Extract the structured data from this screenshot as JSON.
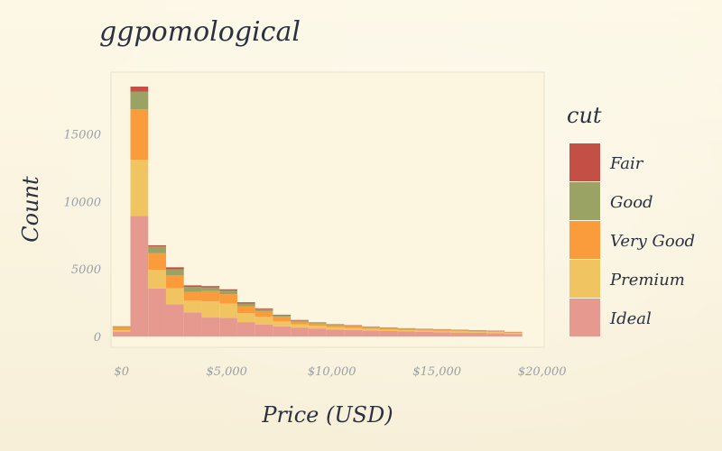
{
  "chart_data": {
    "type": "bar",
    "stacked": true,
    "title": "ggpomological",
    "xlabel": "Price (USD)",
    "ylabel": "Count",
    "x_ticks": [
      {
        "value": 0,
        "label": "$0"
      },
      {
        "value": 5000,
        "label": "$5,000"
      },
      {
        "value": 10000,
        "label": "$10,000"
      },
      {
        "value": 15000,
        "label": "$15,000"
      },
      {
        "value": 20000,
        "label": "$20,000"
      }
    ],
    "y_ticks": [
      {
        "value": 0,
        "label": "0"
      },
      {
        "value": 5000,
        "label": "5000"
      },
      {
        "value": 10000,
        "label": "10000"
      },
      {
        "value": 15000,
        "label": "15000"
      }
    ],
    "xlim": [
      -500,
      20100
    ],
    "ylim": [
      0,
      18700
    ],
    "bins": [
      {
        "x0": -424,
        "x1": 423
      },
      {
        "x0": 423,
        "x1": 1270
      },
      {
        "x0": 1270,
        "x1": 2117
      },
      {
        "x0": 2117,
        "x1": 2964
      },
      {
        "x0": 2964,
        "x1": 3811
      },
      {
        "x0": 3811,
        "x1": 4658
      },
      {
        "x0": 4658,
        "x1": 5505
      },
      {
        "x0": 5505,
        "x1": 6352
      },
      {
        "x0": 6352,
        "x1": 7199
      },
      {
        "x0": 7199,
        "x1": 8046
      },
      {
        "x0": 8046,
        "x1": 8893
      },
      {
        "x0": 8893,
        "x1": 9740
      },
      {
        "x0": 9740,
        "x1": 10587
      },
      {
        "x0": 10587,
        "x1": 11434
      },
      {
        "x0": 11434,
        "x1": 12281
      },
      {
        "x0": 12281,
        "x1": 13128
      },
      {
        "x0": 13128,
        "x1": 13975
      },
      {
        "x0": 13975,
        "x1": 14822
      },
      {
        "x0": 14822,
        "x1": 15669
      },
      {
        "x0": 15669,
        "x1": 16516
      },
      {
        "x0": 16516,
        "x1": 17363
      },
      {
        "x0": 17363,
        "x1": 18210
      },
      {
        "x0": 18210,
        "x1": 19057
      }
    ],
    "series": [
      {
        "name": "Ideal",
        "color": "#e69a8f",
        "values": [
          360,
          8930,
          3560,
          2380,
          1780,
          1400,
          1380,
          1060,
          890,
          750,
          660,
          590,
          520,
          480,
          440,
          400,
          370,
          340,
          320,
          290,
          270,
          250,
          190
        ]
      },
      {
        "name": "Premium",
        "color": "#f1c462",
        "values": [
          110,
          4160,
          1380,
          1180,
          870,
          1190,
          1050,
          660,
          580,
          360,
          240,
          200,
          160,
          140,
          130,
          110,
          100,
          100,
          90,
          90,
          80,
          80,
          70
        ]
      },
      {
        "name": "Very Good",
        "color": "#fa9b3c",
        "values": [
          230,
          3720,
          1230,
          980,
          640,
          770,
          700,
          510,
          400,
          340,
          200,
          170,
          150,
          130,
          110,
          100,
          90,
          80,
          80,
          70,
          60,
          60,
          50
        ]
      },
      {
        "name": "Good",
        "color": "#9aa264",
        "values": [
          60,
          1310,
          490,
          440,
          370,
          270,
          260,
          210,
          150,
          110,
          80,
          60,
          50,
          50,
          40,
          40,
          30,
          30,
          30,
          30,
          30,
          20,
          20
        ]
      },
      {
        "name": "Fair",
        "color": "#c34f45",
        "values": [
          0,
          380,
          90,
          140,
          120,
          100,
          100,
          90,
          60,
          50,
          40,
          30,
          30,
          30,
          20,
          20,
          20,
          20,
          20,
          20,
          20,
          20,
          10
        ]
      }
    ],
    "legend": {
      "title": "cut",
      "position": "right",
      "entries": [
        {
          "label": "Fair",
          "color": "#c34f45"
        },
        {
          "label": "Good",
          "color": "#9aa264"
        },
        {
          "label": "Very Good",
          "color": "#fa9b3c"
        },
        {
          "label": "Premium",
          "color": "#f1c462"
        },
        {
          "label": "Ideal",
          "color": "#e69a8f"
        }
      ]
    },
    "panel_color": "#fcf6e1",
    "panel_border_color": "#e8e2c8",
    "grid": false
  }
}
